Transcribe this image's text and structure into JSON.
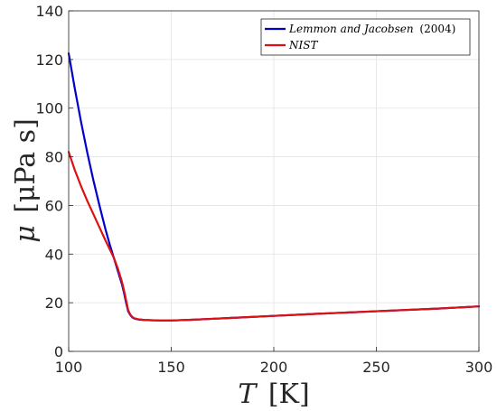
{
  "chart_data": {
    "type": "line",
    "x_label": {
      "symbol": "T",
      "unit": "[K]"
    },
    "y_label": {
      "symbol": "μ",
      "unit": "[μPa s]"
    },
    "xlim": [
      100,
      300
    ],
    "ylim": [
      0,
      140
    ],
    "x_ticks": [
      100,
      150,
      200,
      250,
      300
    ],
    "y_ticks": [
      0,
      20,
      40,
      60,
      80,
      100,
      120,
      140
    ],
    "grid": true,
    "legend": "top-right",
    "series": [
      {
        "name": "Lemmon and Jacobsen",
        "name_suffix": "(2004)",
        "color": "#0000cc",
        "x": [
          100,
          103,
          106,
          109,
          112,
          115,
          118,
          120,
          122,
          124,
          126,
          127,
          128,
          129,
          130,
          131,
          132,
          134,
          137,
          140,
          145,
          150,
          160,
          170,
          180,
          200,
          220,
          250,
          280,
          300
        ],
        "y": [
          122.5,
          108,
          94.5,
          82,
          70.5,
          60,
          50,
          44,
          38.5,
          33,
          27.5,
          24,
          20,
          16.5,
          15,
          14,
          13.5,
          13.1,
          12.9,
          12.8,
          12.7,
          12.7,
          13.0,
          13.4,
          13.8,
          14.6,
          15.4,
          16.5,
          17.6,
          18.5
        ]
      },
      {
        "name": "NIST",
        "color": "#dd1111",
        "x": [
          100,
          103,
          106,
          109,
          112,
          115,
          118,
          120,
          122,
          124,
          126,
          127,
          128,
          129,
          130,
          131,
          132,
          134,
          137,
          140,
          145,
          150,
          160,
          170,
          180,
          200,
          220,
          250,
          280,
          300
        ],
        "y": [
          82,
          74.5,
          68,
          62,
          56.5,
          51,
          45.5,
          42,
          38.5,
          34,
          28.5,
          25,
          21,
          17,
          15.2,
          14.2,
          13.6,
          13.2,
          12.9,
          12.8,
          12.7,
          12.7,
          13.0,
          13.4,
          13.8,
          14.6,
          15.4,
          16.5,
          17.6,
          18.5
        ]
      }
    ]
  }
}
